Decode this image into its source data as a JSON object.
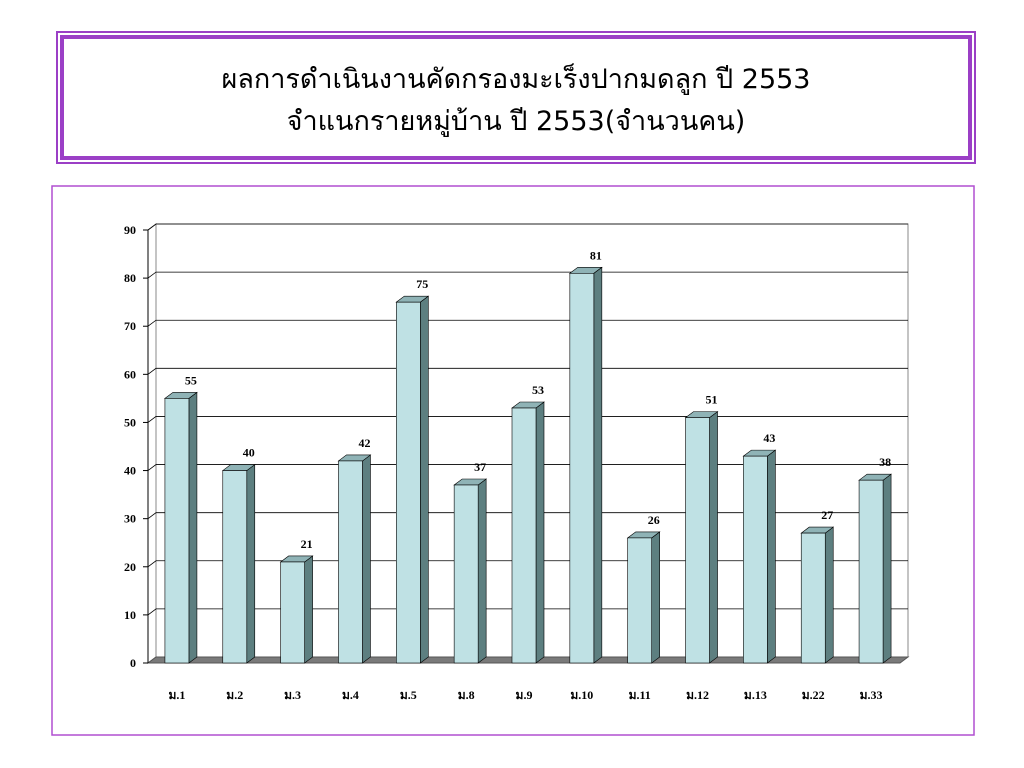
{
  "chart_data": {
    "type": "bar3d",
    "title": "ผลการดำเนินงานคัดกรองมะเร็งปากมดลูก ปี 2553",
    "subtitle": "จำแนกรายหมู่บ้าน ปี 2553(จำนวนคน)",
    "categories": [
      "ม.1",
      "ม.2",
      "ม.3",
      "ม.4",
      "ม.5",
      "ม.8",
      "ม.9",
      "ม.10",
      "ม.11",
      "ม.12",
      "ม.13",
      "ม.22",
      "ม.33"
    ],
    "values": [
      55,
      40,
      21,
      42,
      75,
      37,
      53,
      81,
      26,
      51,
      43,
      27,
      38
    ],
    "color": "#bfe1e4",
    "ylim": [
      0,
      90
    ],
    "yticks": [
      0,
      10,
      20,
      30,
      40,
      50,
      60,
      70,
      80,
      90
    ],
    "grid": true
  }
}
